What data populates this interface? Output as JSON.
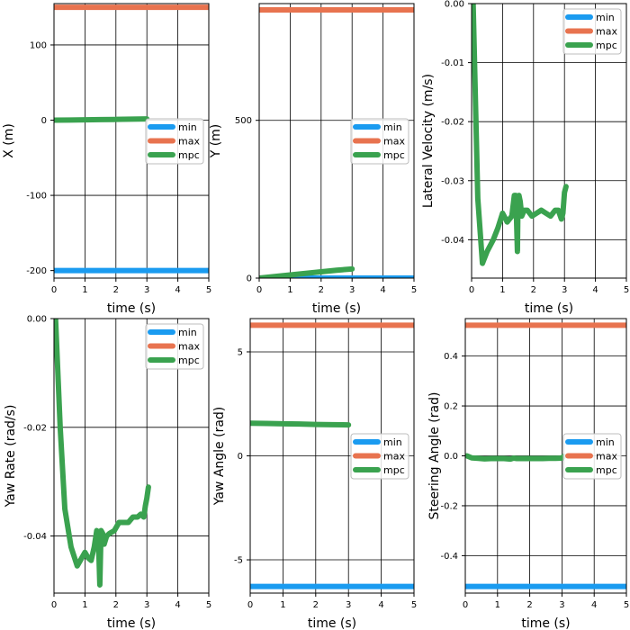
{
  "colors": {
    "min": "#1a9bf0",
    "max": "#e8734f",
    "mpc": "#3aa24f"
  },
  "chart_data": [
    {
      "type": "line",
      "xlabel": "time (s)",
      "ylabel": "X (m)",
      "xlim": [
        0,
        5
      ],
      "ylim": [
        -210,
        155
      ],
      "xticks": [
        0,
        1,
        2,
        3,
        4,
        5
      ],
      "yticks": [
        -200,
        -100,
        0,
        100
      ],
      "ytick_labels": [
        "-200",
        "-100",
        "0",
        "100"
      ],
      "grid": true,
      "legend": "right-middle",
      "series": [
        {
          "name": "min",
          "x": [
            0,
            5
          ],
          "y": [
            -200,
            -200
          ]
        },
        {
          "name": "max",
          "x": [
            0,
            5
          ],
          "y": [
            150,
            150
          ]
        },
        {
          "name": "mpc",
          "x": [
            0,
            0.5,
            1,
            1.5,
            2,
            2.5,
            3
          ],
          "y": [
            0,
            0.2,
            0.5,
            0.8,
            1.0,
            1.3,
            1.6
          ]
        }
      ]
    },
    {
      "type": "line",
      "xlabel": "time (s)",
      "ylabel": "Y (m)",
      "xlim": [
        0,
        5
      ],
      "ylim": [
        0,
        870
      ],
      "xticks": [
        0,
        1,
        2,
        3,
        4,
        5
      ],
      "yticks": [
        0,
        500
      ],
      "ytick_labels": [
        "0",
        "500"
      ],
      "grid": true,
      "legend": "right-middle",
      "series": [
        {
          "name": "min",
          "x": [
            0,
            5
          ],
          "y": [
            0,
            0
          ]
        },
        {
          "name": "max",
          "x": [
            0,
            5
          ],
          "y": [
            850,
            850
          ]
        },
        {
          "name": "mpc",
          "x": [
            0,
            0.5,
            1,
            1.5,
            2,
            2.5,
            3
          ],
          "y": [
            0,
            5,
            10,
            15,
            20,
            25,
            29
          ]
        }
      ]
    },
    {
      "type": "line",
      "xlabel": "time (s)",
      "ylabel": "Lateral Velocity (m/s)",
      "xlim": [
        0,
        5
      ],
      "ylim": [
        -0.0465,
        0
      ],
      "xticks": [
        0,
        1,
        2,
        3,
        4,
        5
      ],
      "yticks": [
        -0.04,
        -0.03,
        -0.02,
        -0.01,
        0
      ],
      "ytick_labels": [
        "-0.04",
        "-0.03",
        "-0.02",
        "-0.01",
        "0.00"
      ],
      "grid": true,
      "legend": "top-right",
      "series": [
        {
          "name": "mpc",
          "x": [
            0.05,
            0.2,
            0.35,
            0.5,
            0.7,
            0.85,
            1.0,
            1.15,
            1.3,
            1.38,
            1.43,
            1.48,
            1.5,
            1.53,
            1.57,
            1.62,
            1.7,
            1.8,
            1.95,
            2.1,
            2.25,
            2.4,
            2.55,
            2.7,
            2.8,
            2.9,
            2.95,
            3.0,
            3.05
          ],
          "y": [
            0,
            -0.033,
            -0.044,
            -0.042,
            -0.04,
            -0.038,
            -0.0355,
            -0.037,
            -0.036,
            -0.0325,
            -0.0325,
            -0.042,
            -0.033,
            -0.0325,
            -0.0335,
            -0.036,
            -0.035,
            -0.035,
            -0.036,
            -0.0355,
            -0.035,
            -0.0355,
            -0.036,
            -0.035,
            -0.035,
            -0.0365,
            -0.0355,
            -0.032,
            -0.031
          ]
        }
      ]
    },
    {
      "type": "line",
      "xlabel": "time (s)",
      "ylabel": "Yaw Rate (rad/s)",
      "xlim": [
        0,
        5
      ],
      "ylim": [
        -0.0505,
        0
      ],
      "xticks": [
        0,
        1,
        2,
        3,
        4,
        5
      ],
      "yticks": [
        -0.04,
        -0.02,
        0
      ],
      "ytick_labels": [
        "-0.04",
        "-0.02",
        "0.00"
      ],
      "grid": true,
      "legend": "top-right",
      "series": [
        {
          "name": "mpc",
          "x": [
            0.05,
            0.2,
            0.35,
            0.55,
            0.75,
            0.85,
            1.0,
            1.1,
            1.2,
            1.3,
            1.38,
            1.43,
            1.48,
            1.52,
            1.57,
            1.62,
            1.7,
            1.8,
            1.95,
            2.1,
            2.25,
            2.4,
            2.55,
            2.7,
            2.8,
            2.9,
            2.95,
            3.0,
            3.05
          ],
          "y": [
            0,
            -0.02,
            -0.035,
            -0.042,
            -0.0455,
            -0.0445,
            -0.043,
            -0.044,
            -0.0445,
            -0.042,
            -0.039,
            -0.0395,
            -0.049,
            -0.039,
            -0.0395,
            -0.0415,
            -0.04,
            -0.0395,
            -0.039,
            -0.0375,
            -0.0375,
            -0.0375,
            -0.0365,
            -0.0365,
            -0.036,
            -0.0365,
            -0.0345,
            -0.033,
            -0.031
          ]
        }
      ]
    },
    {
      "type": "line",
      "xlabel": "time (s)",
      "ylabel": "Yaw Angle (rad)",
      "xlim": [
        0,
        5
      ],
      "ylim": [
        -6.6,
        6.6
      ],
      "xticks": [
        0,
        1,
        2,
        3,
        4,
        5
      ],
      "yticks": [
        -5,
        0,
        5
      ],
      "ytick_labels": [
        "-5",
        "0",
        "5"
      ],
      "grid": true,
      "legend": "right-middle",
      "series": [
        {
          "name": "min",
          "x": [
            0,
            5
          ],
          "y": [
            -6.28,
            -6.28
          ]
        },
        {
          "name": "max",
          "x": [
            0,
            5
          ],
          "y": [
            6.28,
            6.28
          ]
        },
        {
          "name": "mpc",
          "x": [
            0,
            0.5,
            1,
            1.5,
            2,
            2.5,
            3
          ],
          "y": [
            1.57,
            1.56,
            1.54,
            1.53,
            1.51,
            1.5,
            1.49
          ]
        }
      ]
    },
    {
      "type": "line",
      "xlabel": "time (s)",
      "ylabel": "Steering Angle (rad)",
      "xlim": [
        0,
        5
      ],
      "ylim": [
        -0.55,
        0.55
      ],
      "xticks": [
        0,
        1,
        2,
        3,
        4,
        5
      ],
      "yticks": [
        -0.4,
        -0.2,
        0,
        0.2,
        0.4
      ],
      "ytick_labels": [
        "-0.4",
        "-0.2",
        "0.0",
        "0.2",
        "0.4"
      ],
      "grid": true,
      "legend": "right-middle",
      "series": [
        {
          "name": "min",
          "x": [
            0,
            5
          ],
          "y": [
            -0.5236,
            -0.5236
          ]
        },
        {
          "name": "max",
          "x": [
            0,
            5
          ],
          "y": [
            0.5236,
            0.5236
          ]
        },
        {
          "name": "mpc",
          "x": [
            0.05,
            0.2,
            0.4,
            0.6,
            0.8,
            1.0,
            1.2,
            1.4,
            1.5,
            1.6,
            1.8,
            2.0,
            2.2,
            2.4,
            2.6,
            2.8,
            3.0,
            3.05
          ],
          "y": [
            0,
            -0.008,
            -0.01,
            -0.012,
            -0.011,
            -0.011,
            -0.011,
            -0.013,
            -0.009,
            -0.011,
            -0.011,
            -0.011,
            -0.011,
            -0.011,
            -0.01,
            -0.01,
            -0.009,
            -0.002
          ]
        }
      ]
    }
  ]
}
